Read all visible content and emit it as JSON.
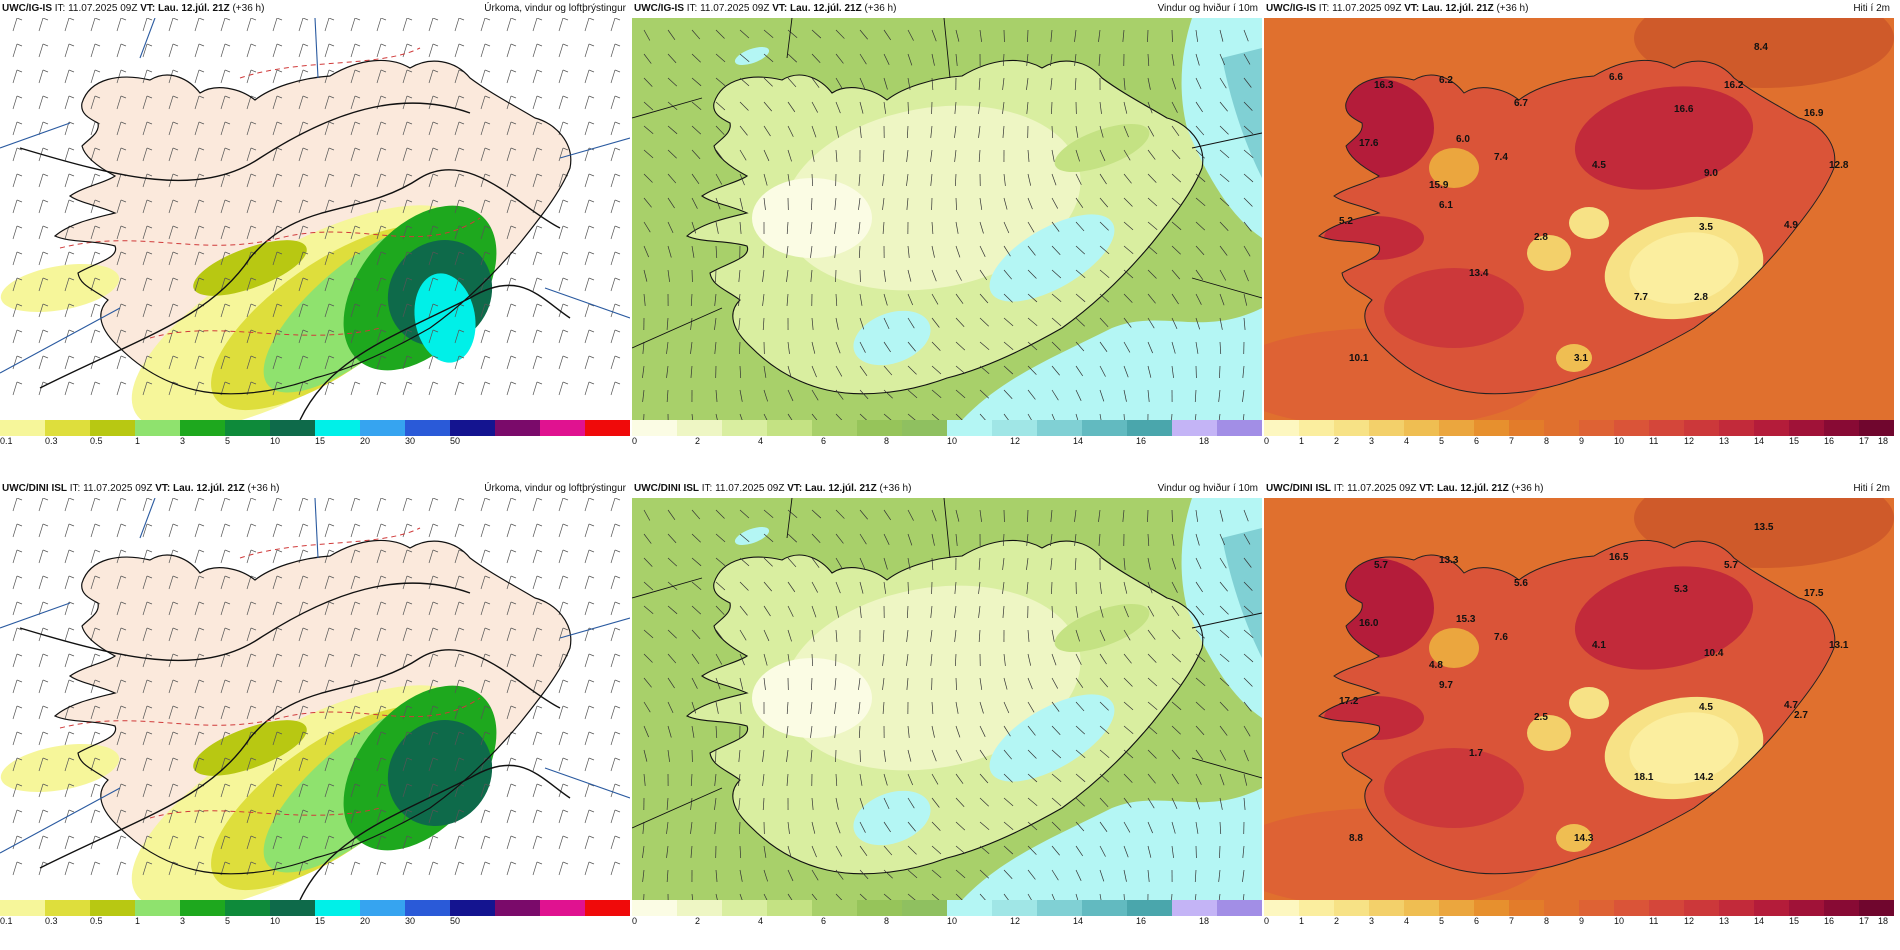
{
  "panels": [
    {
      "id": "p1",
      "model": "UWC/IG-IS",
      "it": "IT: 11.07.2025 09Z",
      "vt": "VT: Lau. 12.júl. 21Z",
      "lead": "(+36 h)",
      "title": "Úrkoma, vindur og loftþrýstingur",
      "type": "precip"
    },
    {
      "id": "p2",
      "model": "UWC/IG-IS",
      "it": "IT: 11.07.2025 09Z",
      "vt": "VT: Lau. 12.júl. 21Z",
      "lead": "(+36 h)",
      "title": "Vindur og hviður í 10m",
      "type": "wind"
    },
    {
      "id": "p3",
      "model": "UWC/IG-IS",
      "it": "IT: 11.07.2025 09Z",
      "vt": "VT: Lau. 12.júl. 21Z",
      "lead": "(+36 h)",
      "title": "Hiti í 2m",
      "type": "temp",
      "labels": [
        "8.4",
        "16.3",
        "6.2",
        "6.6",
        "16.2",
        "6.7",
        "16.6",
        "16.9",
        "17.6",
        "6.0",
        "7.4",
        "4.5",
        "9.0",
        "12.8",
        "15.9",
        "6.1",
        "5.2",
        "2.8",
        "3.5",
        "4.9",
        "13.4",
        "7.7",
        "2.8",
        "10.1",
        "3.1"
      ]
    },
    {
      "id": "p4",
      "model": "UWC/DINI ISL",
      "it": "IT: 11.07.2025 09Z",
      "vt": "VT: Lau. 12.júl. 21Z",
      "lead": "(+36 h)",
      "title": "Úrkoma, vindur og loftþrýstingur",
      "type": "precip"
    },
    {
      "id": "p5",
      "model": "UWC/DINI ISL",
      "it": "IT: 11.07.2025 09Z",
      "vt": "VT: Lau. 12.júl. 21Z",
      "lead": "(+36 h)",
      "title": "Vindur og hviður í 10m",
      "type": "wind"
    },
    {
      "id": "p6",
      "model": "UWC/DINI ISL",
      "it": "IT: 11.07.2025 09Z",
      "vt": "VT: Lau. 12.júl. 21Z",
      "lead": "(+36 h)",
      "title": "Hiti í 2m",
      "type": "temp",
      "labels": [
        "13.5",
        "5.7",
        "13.3",
        "16.5",
        "5.7",
        "5.6",
        "5.3",
        "17.5",
        "16.0",
        "15.3",
        "7.6",
        "4.1",
        "10.4",
        "13.1",
        "4.8",
        "9.7",
        "17.2",
        "2.5",
        "4.5",
        "4.7",
        "1.7",
        "18.1",
        "14.2",
        "8.8",
        "14.3",
        "2.7"
      ]
    }
  ],
  "legends": {
    "precip": {
      "colors": [
        "#f6f69a",
        "#dede3c",
        "#b8c812",
        "#8fe26e",
        "#1ea81e",
        "#0e8a3a",
        "#0e6a4a",
        "#00f0e8",
        "#36a4f0",
        "#2a5ad8",
        "#141490",
        "#7a0a6a",
        "#e01290",
        "#f00a0a"
      ],
      "ticks": [
        "0.1",
        "0.3",
        "0.5",
        "1",
        "3",
        "5",
        "10",
        "15",
        "20",
        "30",
        "50"
      ]
    },
    "wind": {
      "colors": [
        "#fbfce4",
        "#eef6c4",
        "#d9eea0",
        "#c4e283",
        "#a8d06a",
        "#96c45a",
        "#8fc060",
        "#b4f6f4",
        "#a0e6e6",
        "#80d0d4",
        "#62bac0",
        "#4aa6ac",
        "#c4b4f6",
        "#a28ee6"
      ],
      "ticks": [
        "0",
        "2",
        "4",
        "6",
        "8",
        "10",
        "12",
        "14",
        "16",
        "18"
      ]
    },
    "temp": {
      "colors": [
        "#fdf7c0",
        "#fbee9f",
        "#f7e286",
        "#f3d06a",
        "#efbe52",
        "#eba63e",
        "#e7902e",
        "#e37c2a",
        "#e0702e",
        "#de6234",
        "#da5438",
        "#d4463a",
        "#cc383a",
        "#c22a3a",
        "#b41c3a",
        "#a01238",
        "#880a34",
        "#70062e"
      ],
      "ticks": [
        "0",
        "1",
        "2",
        "3",
        "4",
        "5",
        "6",
        "7",
        "8",
        "9",
        "10",
        "11",
        "12",
        "13",
        "14",
        "15",
        "16",
        "17",
        "18"
      ]
    }
  }
}
